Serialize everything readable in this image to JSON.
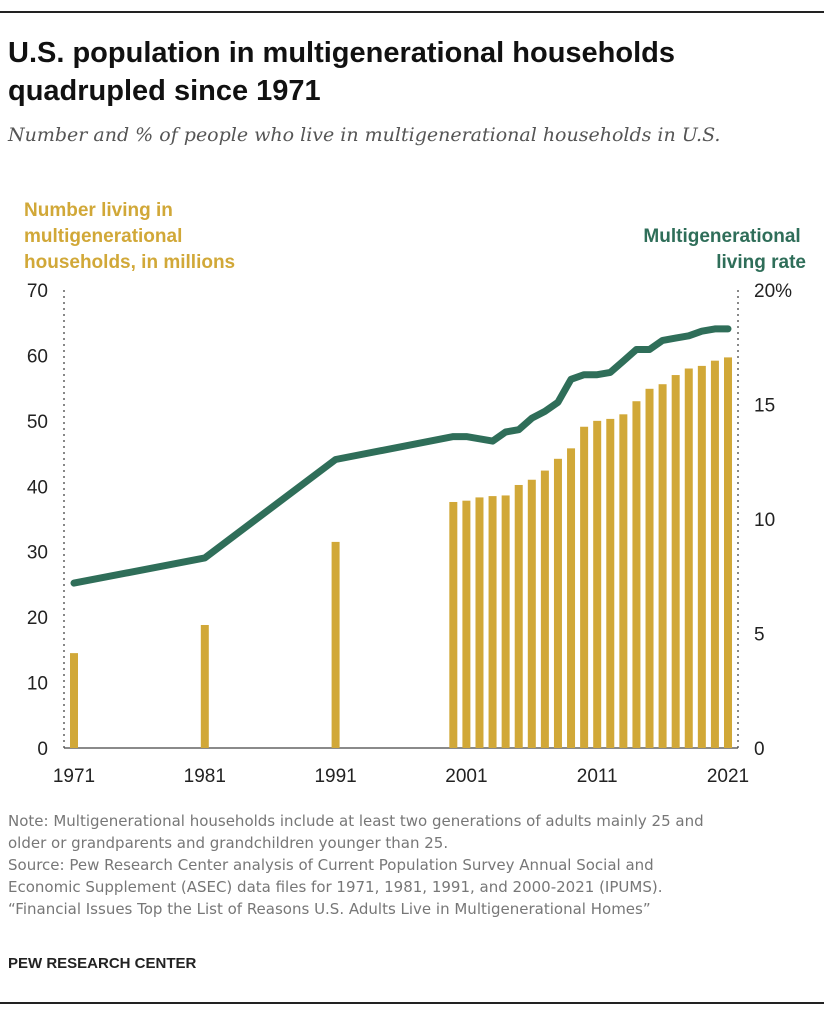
{
  "title_lines": [
    "U.S. population in multigenerational households",
    "quadrupled since 1971"
  ],
  "subtitle": "Number and % of people who live in multigenerational households in U.S.",
  "chart_data": {
    "type": "bar+line",
    "left_axis_title": [
      "Number living in",
      "multigenerational",
      "households, in millions"
    ],
    "right_axis_title": [
      "Multigenerational",
      "living rate"
    ],
    "left_ticks": [
      "0",
      "10",
      "20",
      "30",
      "40",
      "50",
      "60",
      "70"
    ],
    "left_ylim": [
      0,
      70
    ],
    "right_ticks": [
      "0",
      "5",
      "10",
      "15",
      "20%"
    ],
    "right_ylim": [
      0,
      20
    ],
    "x_ticks": [
      "1971",
      "1981",
      "1991",
      "2001",
      "2011",
      "2021"
    ],
    "xlim": [
      1971,
      2021
    ],
    "colors": {
      "bars": "#D1A838",
      "line": "#2F6E59",
      "axis": "#888888",
      "left_title": "#D1A838",
      "right_title": "#2F6E59"
    },
    "bars": {
      "name": "Number living in multigenerational households, in millions",
      "x": [
        1971,
        1981,
        1991,
        2000,
        2001,
        2002,
        2003,
        2004,
        2005,
        2006,
        2007,
        2008,
        2009,
        2010,
        2011,
        2012,
        2013,
        2014,
        2015,
        2016,
        2017,
        2018,
        2019,
        2020,
        2021
      ],
      "values": [
        14.5,
        18.8,
        31.5,
        37.6,
        37.8,
        38.3,
        38.5,
        38.6,
        40.2,
        41.0,
        42.4,
        44.2,
        45.8,
        49.1,
        50.0,
        50.3,
        51.0,
        53.0,
        54.9,
        55.6,
        57.0,
        58.0,
        58.4,
        59.2,
        59.7
      ]
    },
    "line": {
      "name": "Multigenerational living rate",
      "x": [
        1971,
        1981,
        1991,
        2000,
        2001,
        2002,
        2003,
        2004,
        2005,
        2006,
        2007,
        2008,
        2009,
        2010,
        2011,
        2012,
        2013,
        2014,
        2015,
        2016,
        2017,
        2018,
        2019,
        2020,
        2021
      ],
      "values": [
        7.2,
        8.3,
        12.6,
        13.6,
        13.6,
        13.5,
        13.4,
        13.8,
        13.9,
        14.4,
        14.7,
        15.1,
        16.1,
        16.3,
        16.3,
        16.4,
        16.9,
        17.4,
        17.4,
        17.8,
        17.9,
        18.0,
        18.2,
        18.3,
        18.3
      ]
    }
  },
  "note_lines": [
    "Note: Multigenerational households include at least two generations of adults mainly 25 and",
    "older or grandparents and grandchildren younger than 25.",
    "Source: Pew Research Center analysis of Current Population Survey Annual Social and",
    "Economic Supplement (ASEC) data files for 1971, 1981, 1991, and 2000-2021 (IPUMS).",
    "“Financial Issues Top the List of Reasons U.S. Adults Live in Multigenerational Homes”"
  ],
  "credit": "PEW RESEARCH CENTER"
}
